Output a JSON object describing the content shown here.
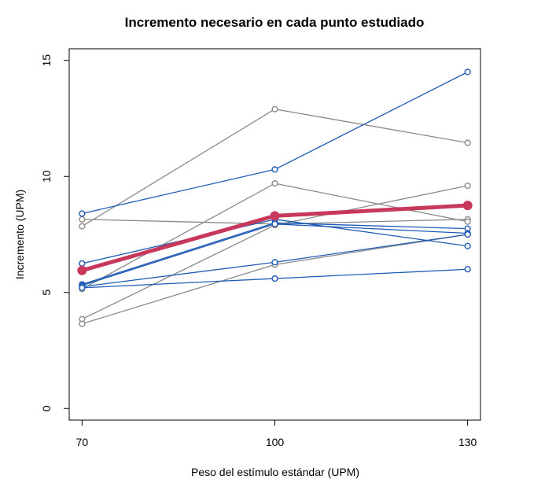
{
  "chart_data": {
    "type": "line",
    "title": "Incremento necesario en cada punto estudiado",
    "xlabel": "Peso del estímulo estándar (UPM)",
    "ylabel": "Incremento (UPM)",
    "x": [
      70,
      100,
      130
    ],
    "x_ticks": [
      "70",
      "100",
      "130"
    ],
    "y_ticks": [
      "0",
      "5",
      "10",
      "15"
    ],
    "xlim": [
      68,
      132
    ],
    "ylim": [
      -0.5,
      15.5
    ],
    "grid": false,
    "legend": "none",
    "colors": {
      "blue": "#1f5bb5",
      "gray": "#8a8a8a",
      "mean": "#c8385a"
    },
    "series": [
      {
        "group": "blue",
        "values": [
          8.4,
          10.3,
          14.5
        ]
      },
      {
        "group": "blue",
        "values": [
          6.25,
          8.15,
          7.0
        ]
      },
      {
        "group": "blue",
        "values": [
          5.35,
          8.0,
          7.75
        ]
      },
      {
        "group": "blue",
        "values": [
          5.3,
          7.95,
          7.55
        ]
      },
      {
        "group": "blue",
        "values": [
          5.25,
          6.3,
          7.5
        ]
      },
      {
        "group": "blue",
        "values": [
          5.2,
          5.6,
          6.0
        ]
      },
      {
        "group": "gray",
        "values": [
          8.15,
          7.95,
          8.15
        ]
      },
      {
        "group": "gray",
        "values": [
          7.85,
          12.9,
          11.45
        ]
      },
      {
        "group": "gray",
        "values": [
          5.15,
          9.7,
          8.05
        ]
      },
      {
        "group": "gray",
        "values": [
          3.85,
          7.9,
          9.6
        ]
      },
      {
        "group": "gray",
        "values": [
          3.65,
          6.2,
          7.5
        ]
      },
      {
        "group": "mean",
        "values": [
          5.95,
          8.3,
          8.75
        ]
      }
    ]
  }
}
